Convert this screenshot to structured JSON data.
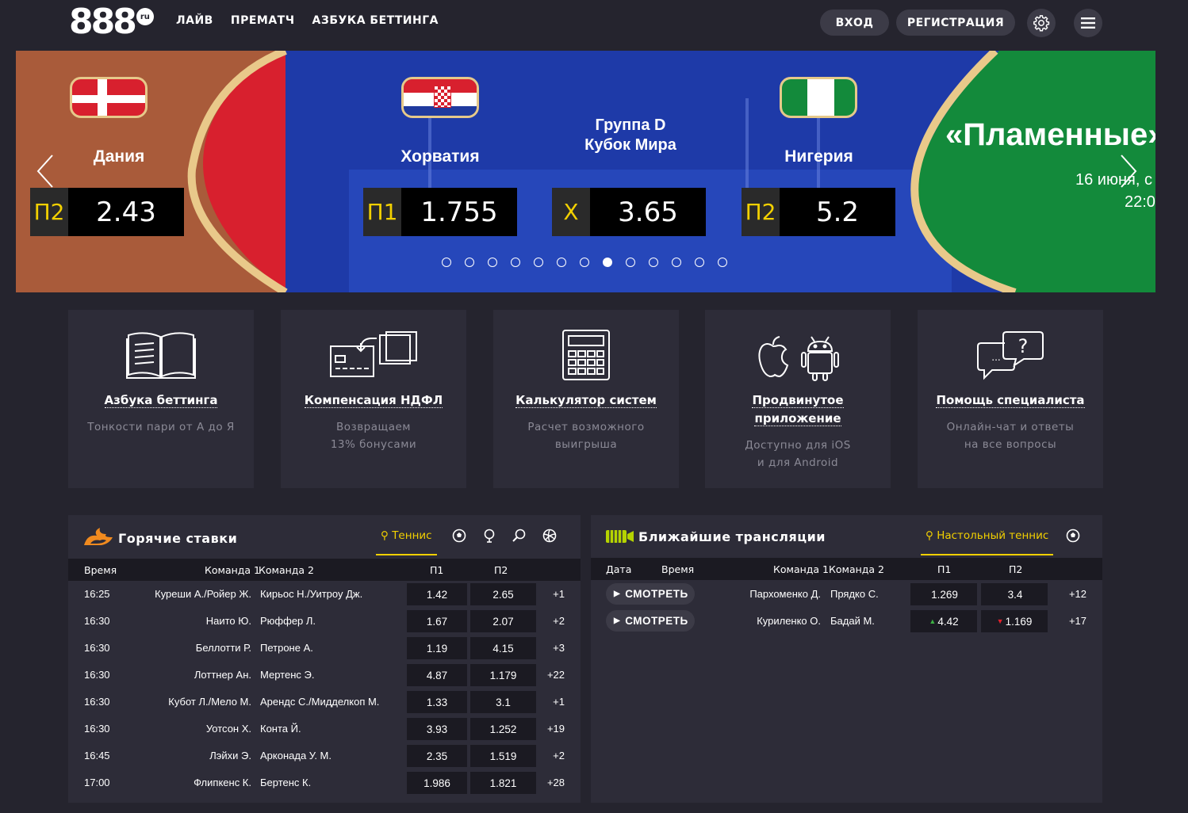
{
  "header": {
    "logo": "888",
    "logo_suffix": "ru",
    "nav": [
      "ЛАЙВ",
      "ПРЕМАТЧ",
      "АЗБУКА БЕТТИНГА"
    ],
    "login": "ВХОД",
    "register": "РЕГИСТРАЦИЯ",
    "settings_icon": "gear-icon",
    "menu_icon": "hamburger-icon"
  },
  "banner": {
    "left_team": "Дания",
    "left_odd_label": "П2",
    "left_odd_value": "2.43",
    "team1": "Хорватия",
    "team2": "Нигерия",
    "group_line1": "Группа D",
    "group_line2": "Кубок Мира",
    "odds": [
      {
        "label": "П1",
        "value": "1.755"
      },
      {
        "label": "Х",
        "value": "3.65"
      },
      {
        "label": "П2",
        "value": "5.2"
      }
    ],
    "promo_title": "«Пламенные»",
    "promo_date": "16 июня, с",
    "promo_time": "22:0",
    "slides_count": 13,
    "active_slide": 8
  },
  "tiles": [
    {
      "title": "Азбука беттинга",
      "subtitle": [
        "Тонкости пари от А до Я"
      ],
      "icon": "book-icon"
    },
    {
      "title": "Компенсация НДФЛ",
      "subtitle": [
        "Возвращаем",
        "13% бонусами"
      ],
      "icon": "card-refund-icon"
    },
    {
      "title": "Калькулятор систем",
      "subtitle": [
        "Расчет возможного",
        "выигрыша"
      ],
      "icon": "calculator-icon"
    },
    {
      "title": [
        "Продвинутое",
        "приложение"
      ],
      "subtitle": [
        "Доступно для iOS",
        "и для Android"
      ],
      "icon": "apple-android-icon"
    },
    {
      "title": "Помощь специалиста",
      "subtitle": [
        "Онлайн-чат и ответы",
        "на все вопросы"
      ],
      "icon": "chat-question-icon"
    }
  ],
  "hot_bets": {
    "title": "Горячие ставки",
    "active_sport": "Теннис",
    "columns": {
      "time": "Время",
      "team1": "Команда 1",
      "team2": "Команда 2",
      "p1": "П1",
      "p2": "П2"
    },
    "rows": [
      {
        "time": "16:25",
        "team1": "Куреши А./Ройер Ж.",
        "team2": "Кирьос Н./Уитроу Дж.",
        "p1": "1.42",
        "p2": "2.65",
        "more": "+1"
      },
      {
        "time": "16:30",
        "team1": "Наито Ю.",
        "team2": "Рюффер Л.",
        "p1": "1.67",
        "p2": "2.07",
        "more": "+2"
      },
      {
        "time": "16:30",
        "team1": "Беллотти Р.",
        "team2": "Петроне А.",
        "p1": "1.19",
        "p2": "4.15",
        "more": "+3"
      },
      {
        "time": "16:30",
        "team1": "Лоттнер Ан.",
        "team2": "Мертенс Э.",
        "p1": "4.87",
        "p2": "1.179",
        "more": "+22"
      },
      {
        "time": "16:30",
        "team1": "Кубот Л./Мело М.",
        "team2": "Арендс С./Мидделкоп М.",
        "p1": "1.33",
        "p2": "3.1",
        "more": "+1"
      },
      {
        "time": "16:30",
        "team1": "Уотсон Х.",
        "team2": "Конта Й.",
        "p1": "3.93",
        "p2": "1.252",
        "more": "+19"
      },
      {
        "time": "16:45",
        "team1": "Лэйхи Э.",
        "team2": "Арконада У. М.",
        "p1": "2.35",
        "p2": "1.519",
        "more": "+2"
      },
      {
        "time": "17:00",
        "team1": "Флипкенс К.",
        "team2": "Бертенс К.",
        "p1": "1.986",
        "p2": "1.821",
        "more": "+28"
      }
    ]
  },
  "streams": {
    "title": "Ближайшие трансляции",
    "active_sport": "Настольный теннис",
    "columns": {
      "date": "Дата",
      "time": "Время",
      "team1": "Команда 1",
      "team2": "Команда 2",
      "p1": "П1",
      "p2": "П2"
    },
    "rows": [
      {
        "watch": "СМОТРЕТЬ",
        "team1": "Пархоменко Д.",
        "team2": "Прядко С.",
        "p1": "1.269",
        "p2": "3.4",
        "more": "+12"
      },
      {
        "watch": "СМОТРЕТЬ",
        "team1": "Куриленко О.",
        "team2": "Бадай М.",
        "p1": "4.42",
        "p2": "1.169",
        "more": "+17"
      }
    ]
  },
  "colors": {
    "accent": "#f2d000",
    "bg": "#25242e",
    "panel": "#2d2c38",
    "up": "#3cb043",
    "down": "#e5202b"
  }
}
